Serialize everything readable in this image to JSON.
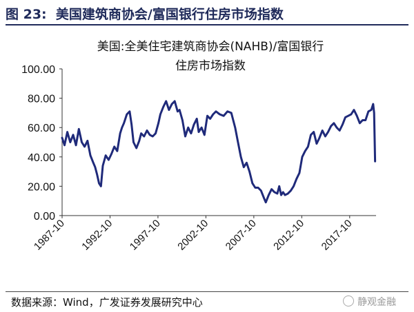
{
  "figure": {
    "label": "图 23:",
    "title": "美国建筑商协会/富国银行住房市场指数"
  },
  "source": "数据来源：Wind，广发证券发展研究中心",
  "watermark": "静观金融",
  "chart_data": {
    "type": "line",
    "title_lines": [
      "美国:全美住宅建筑商协会(NAHB)/富国银行",
      "住房市场指数"
    ],
    "xlabel": "",
    "ylabel": "",
    "ylim": [
      0,
      100
    ],
    "y_ticks": [
      "0.00",
      "20.00",
      "40.00",
      "60.00",
      "80.00",
      "100.00"
    ],
    "x_ticks": [
      "1987-10",
      "1992-10",
      "1997-10",
      "2002-10",
      "2007-10",
      "2012-10",
      "2017-10"
    ],
    "x_range": [
      1987.75,
      2020.5
    ],
    "grid": false,
    "legend": "none",
    "line_color": "#1f2a7a",
    "series": [
      {
        "x": [
          1987.75,
          1988.0,
          1988.3,
          1988.6,
          1988.9,
          1989.2,
          1989.5,
          1989.8,
          1990.1,
          1990.4,
          1990.7,
          1991.0,
          1991.2,
          1991.4,
          1991.6,
          1991.8,
          1992.0,
          1992.3,
          1992.6,
          1992.9,
          1993.2,
          1993.5,
          1993.8,
          1994.0,
          1994.2,
          1994.5,
          1994.8,
          1995.0,
          1995.2,
          1995.5,
          1995.8,
          1996.0,
          1996.3,
          1996.6,
          1996.9,
          1997.2,
          1997.5,
          1997.8,
          1998.0,
          1998.3,
          1998.6,
          1998.9,
          1999.2,
          1999.5,
          1999.8,
          2000.0,
          2000.3,
          2000.6,
          2000.9,
          2001.2,
          2001.5,
          2001.8,
          2002.0,
          2002.3,
          2002.6,
          2002.9,
          2003.2,
          2003.5,
          2003.8,
          2004.2,
          2004.6,
          2005.0,
          2005.4,
          2005.8,
          2006.1,
          2006.4,
          2006.7,
          2007.0,
          2007.3,
          2007.6,
          2007.9,
          2008.2,
          2008.5,
          2008.8,
          2009.0,
          2009.3,
          2009.6,
          2009.9,
          2010.2,
          2010.4,
          2010.6,
          2010.8,
          2011.0,
          2011.3,
          2011.6,
          2011.9,
          2012.2,
          2012.5,
          2012.8,
          2013.1,
          2013.4,
          2013.7,
          2014.0,
          2014.3,
          2014.6,
          2014.9,
          2015.2,
          2015.5,
          2015.8,
          2016.1,
          2016.4,
          2016.7,
          2017.0,
          2017.3,
          2017.6,
          2017.9,
          2018.2,
          2018.5,
          2018.8,
          2019.1,
          2019.4,
          2019.7,
          2020.0,
          2020.2,
          2020.3,
          2020.4
        ],
        "values": [
          53,
          48,
          57,
          50,
          55,
          48,
          59,
          50,
          47,
          51,
          41,
          36,
          33,
          28,
          22,
          20,
          34,
          41,
          38,
          42,
          47,
          44,
          56,
          60,
          63,
          69,
          71,
          62,
          50,
          46,
          51,
          56,
          54,
          58,
          55,
          54,
          56,
          63,
          69,
          74,
          78,
          72,
          76,
          78,
          71,
          72,
          65,
          54,
          60,
          56,
          62,
          66,
          57,
          60,
          55,
          68,
          66,
          69,
          71,
          69,
          68,
          71,
          70,
          60,
          50,
          40,
          33,
          36,
          30,
          22,
          19,
          19,
          17,
          12,
          9,
          14,
          18,
          16,
          15,
          20,
          14,
          16,
          14,
          15,
          17,
          20,
          25,
          29,
          40,
          44,
          47,
          55,
          57,
          49,
          53,
          58,
          54,
          57,
          61,
          63,
          60,
          58,
          62,
          67,
          68,
          69,
          72,
          68,
          63,
          65,
          65,
          71,
          72,
          76,
          70,
          37
        ]
      }
    ]
  }
}
